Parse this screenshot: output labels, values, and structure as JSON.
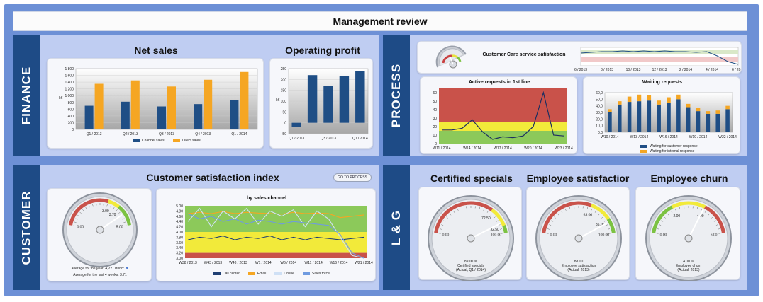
{
  "page_title": "Management review",
  "sections": {
    "finance": "FINANCE",
    "process": "PROCESS",
    "customer": "CUSTOMER",
    "lg": "L & G"
  },
  "net_sales": {
    "title": "Net sales",
    "y_ticks": [
      "1 800",
      "1 600",
      "1 400",
      "1 200",
      "1 000",
      "800",
      "600",
      "400",
      "200",
      "0"
    ],
    "ylabel": "k€",
    "legend": [
      "Channel sales",
      "Direct sales"
    ],
    "colors": [
      "#1f4e85",
      "#f5a623"
    ]
  },
  "operating_profit": {
    "title": "Operating profit",
    "y_ticks": [
      "250",
      "200",
      "150",
      "100",
      "50",
      "0",
      "-50"
    ],
    "ylabel": "k€"
  },
  "cc_service": {
    "title": "Customer Care service satisfaction",
    "x_ticks": [
      "6 / 2013",
      "8 / 2013",
      "10 / 2013",
      "12 / 2013",
      "2 / 2014",
      "4 / 2014",
      "6 / 2014"
    ]
  },
  "active_requests": {
    "title": "Active requests in 1st line",
    "y_ticks": [
      "60",
      "50",
      "40",
      "30",
      "20",
      "10",
      "0"
    ],
    "x_ticks": [
      "W11 / 2014",
      "W14 / 2014",
      "W17 / 2014",
      "W20 / 2014",
      "W23 / 2014"
    ]
  },
  "waiting_requests": {
    "title": "Waiting requests",
    "y_ticks": [
      "60,0",
      "50,0",
      "40,0",
      "30,0",
      "20,0",
      "10,0",
      "0,0"
    ],
    "x_ticks": [
      "W10 / 2014",
      "W13 / 2014",
      "W16 / 2014",
      "W19 / 2014",
      "W22 / 2014"
    ],
    "legend": [
      "Waiting for customer response",
      "Waiting for internal response"
    ],
    "colors": [
      "#1f4e85",
      "#f5a623"
    ]
  },
  "csi": {
    "title": "Customer satisfaction index",
    "button": "GO TO PROCESS",
    "gauge_value": 4.22,
    "avg_year_label": "Average for the year: 4,22",
    "trend_label": "Trend:",
    "avg_4weeks_label": "Average for the last 4 weeks: 3.71",
    "gauge_ticks": [
      "0.00",
      "3.00",
      "3.70",
      "5.00"
    ],
    "channel_chart_title": "by sales channel",
    "channel_y_ticks": [
      "5.00",
      "4.80",
      "4.60",
      "4.40",
      "4.20",
      "4.00",
      "3.80",
      "3.60",
      "3.40",
      "3.20",
      "3.00"
    ],
    "channel_x_ticks": [
      "W38 / 2013",
      "W43 / 2013",
      "W48 / 2013",
      "W1 / 2014",
      "W6 / 2014",
      "W11 / 2014",
      "W16 / 2014",
      "W21 / 2014"
    ],
    "channel_legend": [
      "Call center",
      "Email",
      "Online",
      "Sales force"
    ],
    "channel_colors": [
      "#1f3f73",
      "#f5a623",
      "#cfe0f5",
      "#6f9be0"
    ]
  },
  "certified": {
    "title": "Certified specials",
    "value": "89.00 %",
    "label1": "Certified specials",
    "label2": "(Actual, Q1 / 2014)",
    "ticks": [
      "0.00",
      "72.50",
      "92.50",
      "100.00"
    ]
  },
  "emp_satisfaction": {
    "title": "Employee satisfactior",
    "value": "88.00",
    "label1": "Employee satisfaction",
    "label2": "(Actual, 2013)",
    "ticks": [
      "0.00",
      "63.00",
      "85.00",
      "100.00"
    ]
  },
  "emp_churn": {
    "title": "Employee churn",
    "value": "4.00 %",
    "label1": "Employee churn",
    "label2": "(Actual, 2013)",
    "ticks": [
      "0.00",
      "2.00",
      "4.00",
      "6.00"
    ]
  },
  "chart_data": [
    {
      "type": "bar",
      "title": "Net sales",
      "categories": [
        "Q1 / 2013",
        "Q2 / 2013",
        "Q3 / 2013",
        "Q4 / 2013",
        "Q1 / 2014"
      ],
      "series": [
        {
          "name": "Channel sales",
          "values": [
            700,
            820,
            680,
            750,
            860
          ]
        },
        {
          "name": "Direct sales",
          "values": [
            1350,
            1450,
            1270,
            1470,
            1700
          ]
        }
      ],
      "ylabel": "k€",
      "ylim": [
        0,
        1800
      ]
    },
    {
      "type": "bar",
      "title": "Operating profit",
      "categories": [
        "Q1 / 2013",
        "Q2 / 2013",
        "Q3 / 2013",
        "Q4 / 2013",
        "Q1 / 2014"
      ],
      "values": [
        -20,
        220,
        170,
        215,
        240
      ],
      "ylabel": "k€",
      "ylim": [
        -50,
        250
      ]
    },
    {
      "type": "line",
      "title": "Active requests in 1st line",
      "x": [
        "W11 / 2014",
        "W12",
        "W13",
        "W14 / 2014",
        "W15",
        "W16",
        "W17 / 2014",
        "W18",
        "W19",
        "W20 / 2014",
        "W21",
        "W22",
        "W23 / 2014"
      ],
      "values": [
        16,
        16,
        18,
        28,
        14,
        5,
        8,
        7,
        9,
        20,
        60,
        10,
        9
      ],
      "ylim": [
        0,
        65
      ]
    },
    {
      "type": "bar",
      "title": "Waiting requests",
      "categories": [
        "W10",
        "W11",
        "W12",
        "W13",
        "W14",
        "W15",
        "W16",
        "W17",
        "W18",
        "W19",
        "W20",
        "W21",
        "W22"
      ],
      "series": [
        {
          "name": "Waiting for customer response",
          "values": [
            30,
            42,
            46,
            47,
            48,
            42,
            45,
            50,
            38,
            32,
            28,
            28,
            35
          ]
        },
        {
          "name": "Waiting for internal response",
          "values": [
            5,
            5,
            8,
            10,
            8,
            6,
            8,
            7,
            5,
            5,
            4,
            5,
            5
          ]
        }
      ],
      "ylim": [
        0,
        60
      ]
    },
    {
      "type": "line",
      "title": "by sales channel",
      "x": [
        "W38",
        "W40",
        "W43",
        "W45",
        "W48",
        "W50",
        "W1",
        "W3",
        "W6",
        "W8",
        "W11",
        "W13",
        "W16",
        "W18",
        "W21",
        "W23"
      ],
      "series": [
        {
          "name": "Call center",
          "values": [
            3.7,
            3.8,
            3.75,
            3.85,
            3.7,
            3.8,
            3.75,
            3.85,
            3.7,
            3.8,
            3.7,
            3.8,
            3.75,
            3.7,
            3.75,
            3.8
          ]
        },
        {
          "name": "Email",
          "values": [
            4.7,
            4.75,
            4.7,
            4.78,
            4.7,
            4.75,
            4.72,
            4.7,
            4.68,
            4.75,
            4.7,
            4.72,
            4.7,
            4.55,
            4.6,
            4.65
          ]
        },
        {
          "name": "Online",
          "values": [
            4.4,
            4.9,
            4.2,
            4.8,
            4.5,
            4.9,
            4.3,
            4.8,
            4.6,
            4.85,
            4.2,
            4.8,
            4.5,
            3.8,
            3.1,
            3.0
          ]
        },
        {
          "name": "Sales force",
          "values": [
            4.7,
            4.5,
            4.6,
            4.4,
            4.5,
            4.3,
            4.45,
            4.4,
            4.3,
            4.4,
            4.35,
            4.3,
            4.25,
            3.9,
            3.2,
            3.0
          ]
        }
      ],
      "ylim": [
        3.0,
        5.0
      ]
    }
  ]
}
